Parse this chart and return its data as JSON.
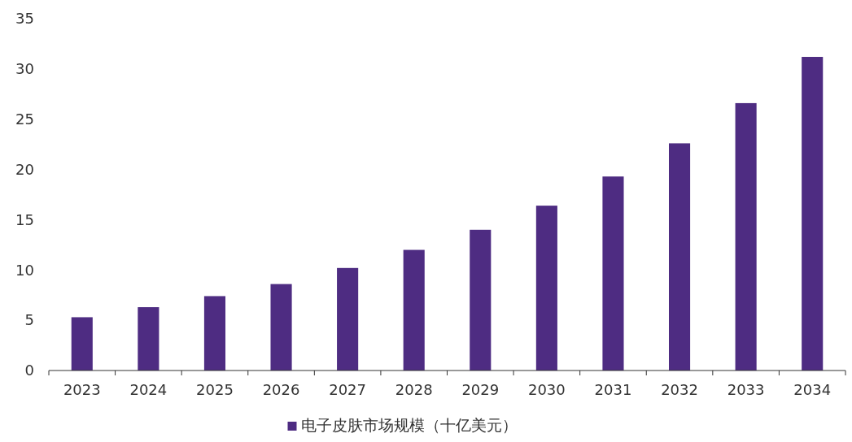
{
  "chart_data": {
    "type": "bar",
    "categories": [
      "2023",
      "2024",
      "2025",
      "2026",
      "2027",
      "2028",
      "2029",
      "2030",
      "2031",
      "2032",
      "2033",
      "2034"
    ],
    "series": [
      {
        "name": "电子皮肤市场规模（十亿美元）",
        "color": "#4e2c82",
        "values": [
          5.3,
          6.3,
          7.4,
          8.6,
          10.2,
          12.0,
          14.0,
          16.4,
          19.3,
          22.6,
          26.6,
          31.2
        ]
      }
    ],
    "ylim": [
      0,
      35
    ],
    "yticks": [
      0,
      5,
      10,
      15,
      20,
      25,
      30,
      35
    ],
    "grid": false,
    "legend": "bottom"
  }
}
